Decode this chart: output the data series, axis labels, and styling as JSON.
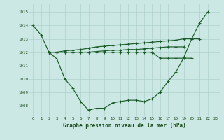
{
  "hours": [
    0,
    1,
    2,
    3,
    4,
    5,
    6,
    7,
    8,
    9,
    10,
    11,
    12,
    13,
    14,
    15,
    16,
    17,
    18,
    19,
    20,
    21,
    22,
    23
  ],
  "series_u": [
    1014.0,
    1013.3,
    1012.0,
    1011.5,
    1010.0,
    1009.3,
    1008.3,
    1007.65,
    1007.8,
    1007.8,
    1008.2,
    1008.3,
    1008.4,
    1008.4,
    1008.3,
    1008.5,
    1009.0,
    1009.8,
    1010.5,
    1011.6,
    1013.0,
    1014.2,
    1015.0,
    null
  ],
  "series_rise": [
    null,
    null,
    1012.0,
    1012.0,
    1012.1,
    1012.15,
    1012.2,
    1012.3,
    1012.4,
    1012.45,
    1012.5,
    1012.55,
    1012.6,
    1012.65,
    1012.7,
    1012.75,
    1012.8,
    1012.85,
    1012.9,
    1013.0,
    1013.0,
    1013.0,
    null,
    null
  ],
  "series_flat1": [
    null,
    null,
    1012.0,
    1012.0,
    1012.0,
    1012.0,
    1012.0,
    1012.0,
    1012.05,
    1012.1,
    1012.15,
    1012.15,
    1012.2,
    1012.2,
    1012.25,
    1012.3,
    1012.35,
    1012.4,
    1012.4,
    1012.4,
    null,
    null,
    null,
    null
  ],
  "series_flat2": [
    null,
    null,
    1012.0,
    1012.0,
    1012.0,
    1012.0,
    1012.0,
    1012.0,
    1012.0,
    1012.0,
    1012.0,
    1012.0,
    1012.0,
    1012.0,
    1012.0,
    1012.0,
    1011.55,
    1011.55,
    1011.55,
    1011.55,
    1011.55,
    null,
    null,
    null
  ],
  "bg_color": "#cce8e4",
  "grid_color": "#aed0cc",
  "line_color": "#1a5c28",
  "ylabel_ticks": [
    1008,
    1009,
    1010,
    1011,
    1012,
    1013,
    1014,
    1015
  ],
  "xlabel": "Graphe pression niveau de la mer (hPa)",
  "ylim": [
    1007.2,
    1015.6
  ],
  "xlim": [
    -0.5,
    23.5
  ]
}
